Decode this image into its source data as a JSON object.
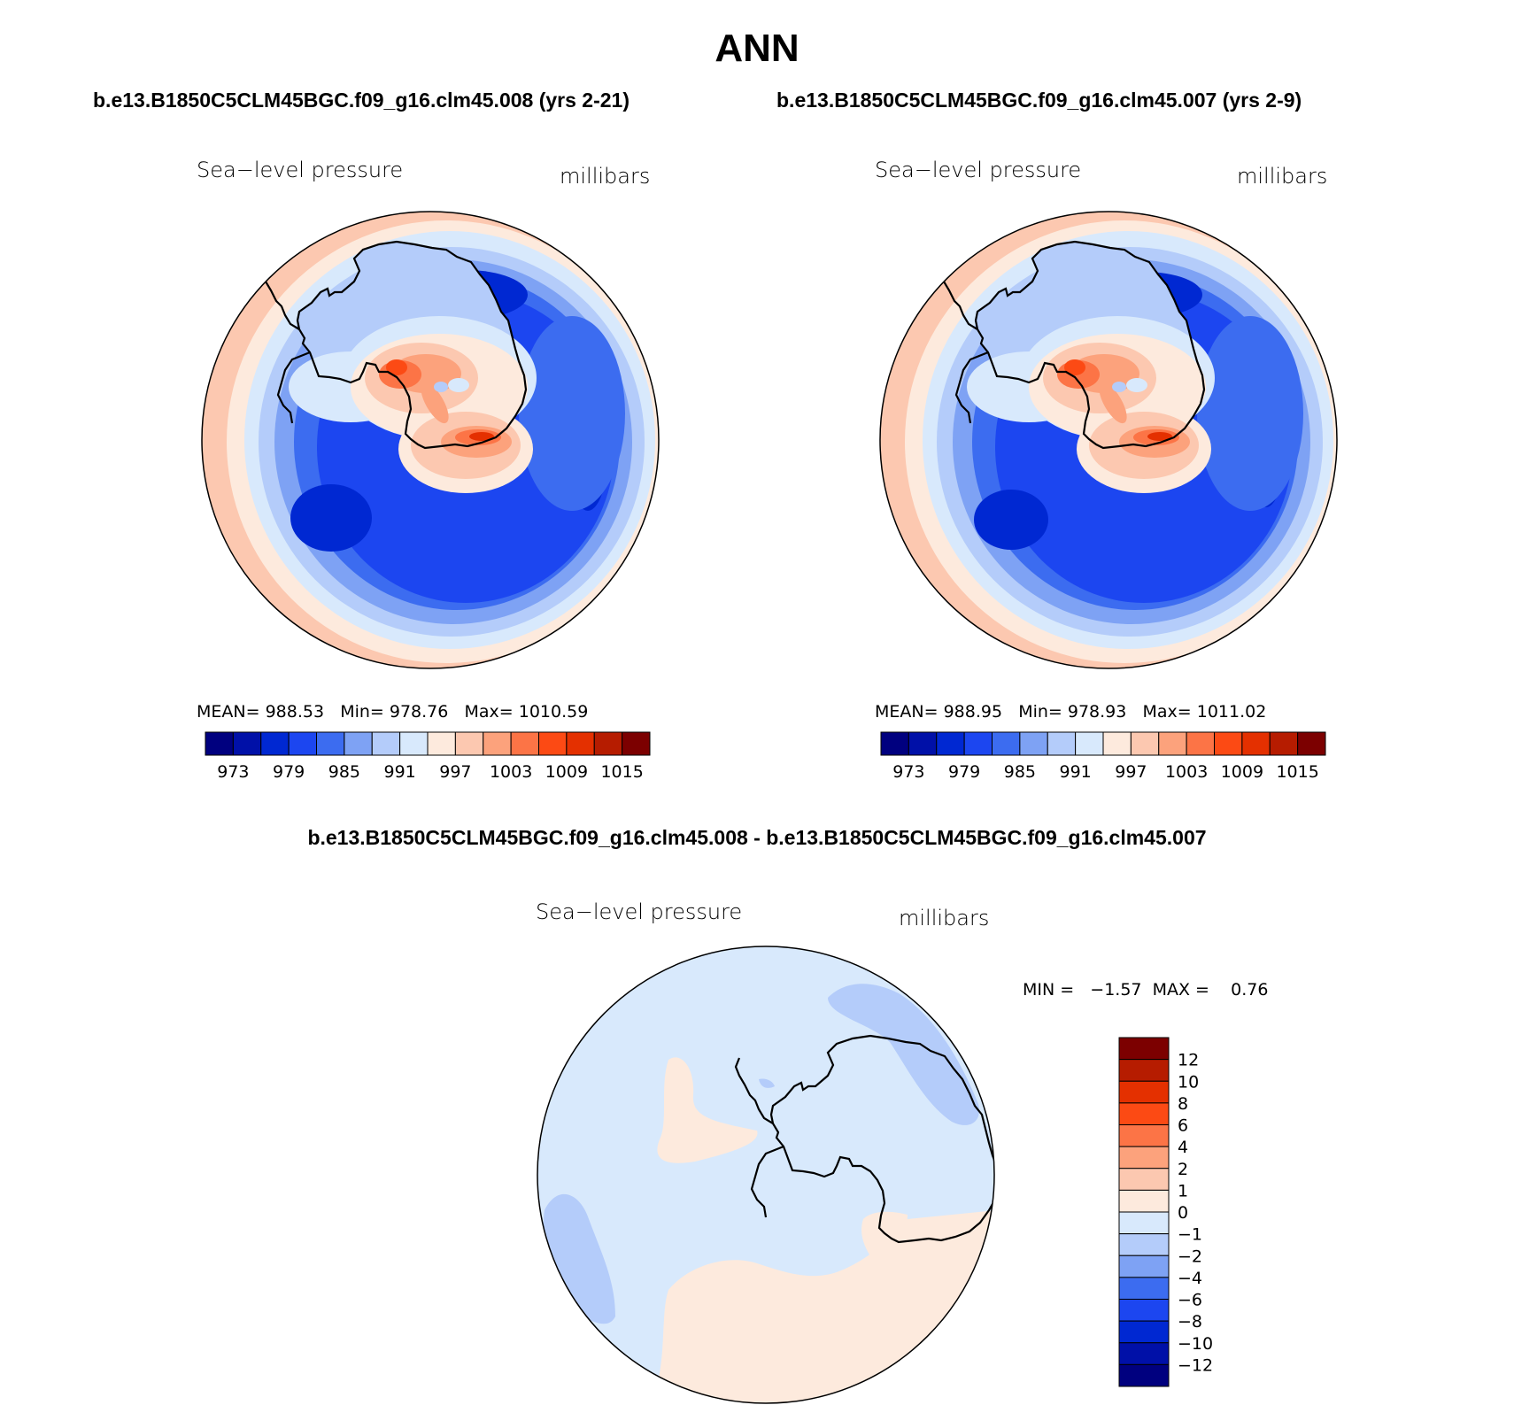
{
  "header": {
    "title": "ANN",
    "case1": "b.e13.B1850C5CLM45BGC.f09_g16.clm45.008 (yrs 2-21)",
    "case2": "b.e13.B1850C5CLM45BGC.f09_g16.clm45.007 (yrs 2-9)",
    "diff_title": "b.e13.B1850C5CLM45BGC.f09_g16.clm45.008 - b.e13.B1850C5CLM45BGC.f09_g16.clm45.007"
  },
  "panels": [
    {
      "variable": "Sea−level pressure",
      "units": "millibars",
      "mean_label": "MEAN=",
      "mean": "988.53",
      "min_label": "Min=",
      "min": "978.76",
      "max_label": "Max=",
      "max": "1010.59"
    },
    {
      "variable": "Sea−level pressure",
      "units": "millibars",
      "mean_label": "MEAN=",
      "mean": "988.95",
      "min_label": "Min=",
      "min": "978.93",
      "max_label": "Max=",
      "max": "1011.02"
    }
  ],
  "diff_panel": {
    "variable": "Sea−level pressure",
    "units": "millibars",
    "stats_text": "MIN =   −1.57  MAX =    0.76"
  },
  "colorbar_abs": {
    "colors": [
      "#00007f",
      "#0010a8",
      "#0028d2",
      "#1c46f0",
      "#3c6cf0",
      "#7ea2f4",
      "#b4ccfa",
      "#d8e9fc",
      "#fdeadd",
      "#fcc8b0",
      "#fca27c",
      "#fc7446",
      "#fc4a14",
      "#e43000",
      "#b61c00",
      "#7c0000"
    ],
    "tick_labels": [
      "973",
      "979",
      "985",
      "991",
      "997",
      "1003",
      "1009",
      "1015"
    ]
  },
  "colorbar_diff": {
    "colors": [
      "#7c0000",
      "#b61c00",
      "#e43000",
      "#fc4a14",
      "#fc7446",
      "#fca27c",
      "#fcc8b0",
      "#fdeadd",
      "#d8e9fc",
      "#b4ccfa",
      "#7ea2f4",
      "#3c6cf0",
      "#1c46f0",
      "#0028d2",
      "#0010a8",
      "#00007f"
    ],
    "tick_labels": [
      "12",
      "10",
      "8",
      "6",
      "4",
      "2",
      "1",
      "0",
      "−1",
      "−2",
      "−4",
      "−6",
      "−8",
      "−10",
      "−12"
    ]
  },
  "map_colors": {
    "ring_outer": "#fcc8b0",
    "ring_2": "#fdeadd",
    "ring_3": "#d8e9fc",
    "ring_4": "#b4ccfa",
    "ring_5": "#7ea2f4",
    "ring_6": "#3c6cf0",
    "ring_low": "#1c46f0",
    "ring_lowest": "#0028d2",
    "land_1": "#b4ccfa",
    "land_2": "#d8e9fc",
    "land_3": "#fdeadd",
    "land_4": "#fcc8b0",
    "land_5": "#fca27c",
    "land_6": "#fc7446",
    "land_7": "#fc4a14",
    "land_8": "#e43000",
    "diff_bg": "#d8e9fc",
    "diff_pos": "#fdeadd",
    "diff_neg": "#b4ccfa"
  }
}
